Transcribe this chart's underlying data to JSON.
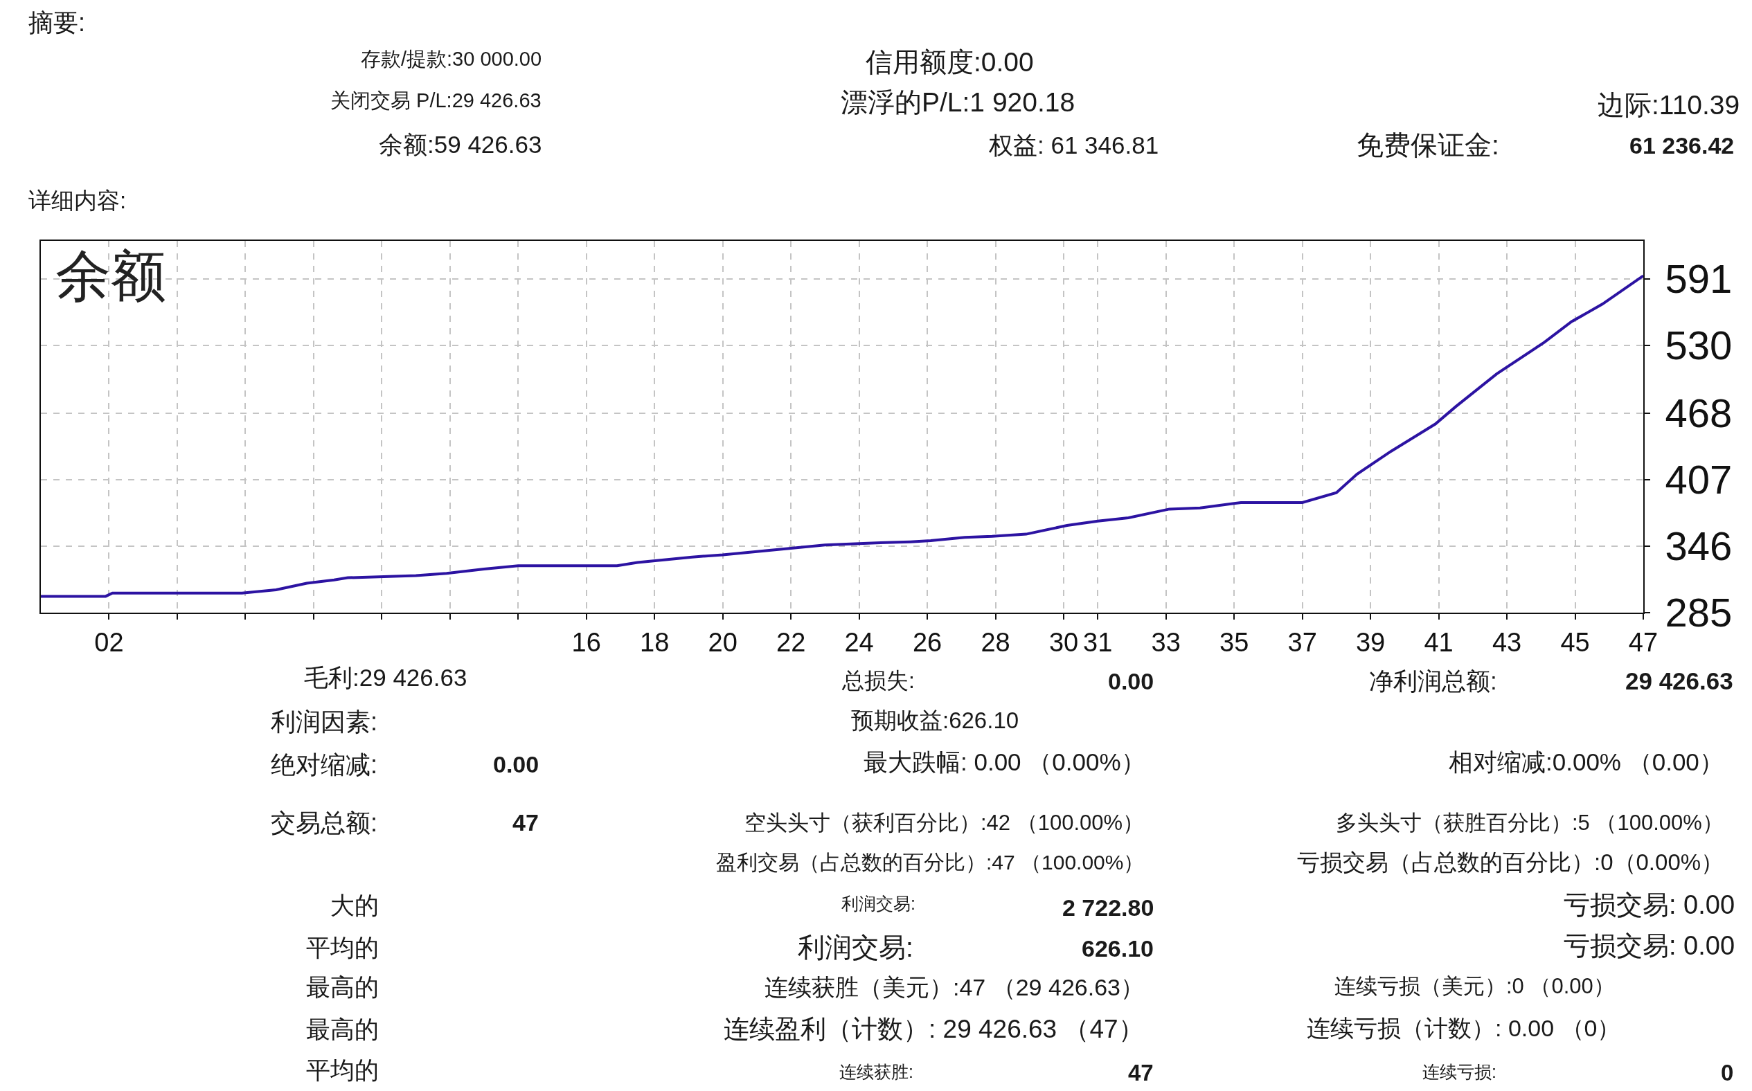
{
  "chart_data": {
    "type": "line",
    "title": "余额",
    "x": [
      0,
      1.9,
      2.1,
      5.9,
      6.9,
      7.8,
      8.6,
      9.0,
      11.0,
      11.9,
      13.0,
      14.0,
      16.9,
      17.5,
      19.1,
      20.0,
      22.0,
      23.0,
      24.5,
      25.5,
      26.1,
      27.1,
      27.9,
      28.9,
      30.1,
      31.0,
      31.9,
      33.1,
      34.0,
      35.2,
      37.0,
      38.0,
      38.6,
      39.6,
      40.9,
      41.5,
      42.7,
      44.1,
      44.9,
      45.8,
      47
    ],
    "series": [
      {
        "color": "#2c13a2",
        "values": [
          300,
          300,
          303,
          303,
          306,
          312,
          315,
          317,
          319,
          321,
          325,
          328,
          328,
          331,
          336,
          338,
          344,
          347,
          349,
          350,
          351,
          354,
          355,
          357,
          365,
          369,
          372,
          380,
          381,
          386,
          386,
          395,
          412,
          433,
          458,
          474,
          504,
          533,
          552,
          568,
          594
        ]
      }
    ],
    "xlim": [
      0,
      47
    ],
    "xticks": [
      {
        "value": 2,
        "label": "02"
      },
      {
        "value": 4,
        "label": null
      },
      {
        "value": 6,
        "label": null
      },
      {
        "value": 8,
        "label": null
      },
      {
        "value": 10,
        "label": null
      },
      {
        "value": 12,
        "label": null
      },
      {
        "value": 14,
        "label": null
      },
      16,
      18,
      20,
      22,
      24,
      26,
      28,
      30,
      31,
      33,
      35,
      37,
      39,
      41,
      43,
      45,
      47
    ],
    "ylim": [
      285,
      626
    ],
    "yticks": [
      285,
      346,
      407,
      468,
      530,
      591
    ],
    "grid": true,
    "line_style": "solid",
    "annotations": [
      "摘要:",
      "存款/提款:30 000.00",
      "信用额度:0.00",
      "关闭交易 P/L:29 426.63",
      "漂浮的P/L:1 920.18",
      "边际:110.39",
      "余额:59 426.63",
      "权益: 61 346.81",
      "免费保证金:",
      "61 236.42",
      "详细内容:",
      "毛利:29 426.63",
      "总损失:",
      "0.00",
      "净利润总额:",
      "29 426.63",
      "利润因素:",
      "预期收益:626.10",
      "绝对缩减:",
      "0.00",
      "最大跌幅: 0.00 （0.00%）",
      "相对缩减:0.00% （0.00）",
      "交易总额:",
      "47",
      "空头头寸（获利百分比）:42 （100.00%）",
      "多头头寸（获胜百分比）:5 （100.00%）",
      "盈利交易（占总数的百分比）:47 （100.00%）",
      "亏损交易（占总数的百分比）:0（0.00%）",
      "大的",
      "利润交易:",
      "2 722.80",
      "亏损交易: 0.00",
      "平均的",
      "利润交易:",
      "626.10",
      "亏损交易: 0.00",
      "最高的",
      "连续获胜（美元）:47 （29 426.63）",
      "连续亏损（美元）:0 （0.00）",
      "最高的",
      "连续盈利（计数）: 29 426.63 （47）",
      "连续亏损（计数）: 0.00 （0）",
      "平均的",
      "连续获胜:",
      "47",
      "连续亏损:",
      "0"
    ]
  }
}
